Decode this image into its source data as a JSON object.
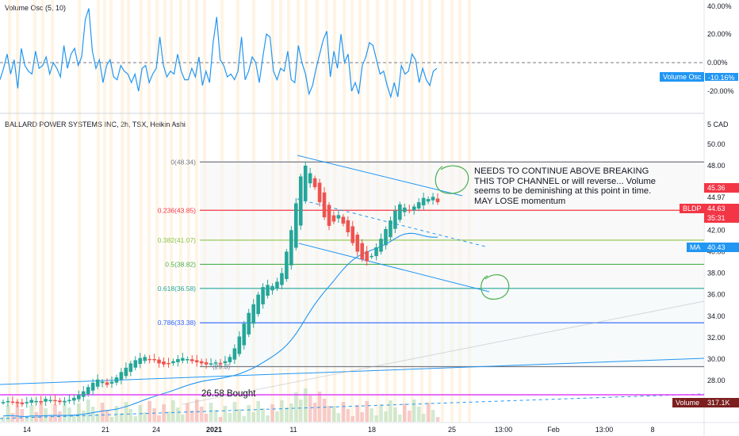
{
  "osc_pane": {
    "title": "Volume Osc (5, 10)",
    "scale_labels": [
      "40.00%",
      "20.00%",
      "0.00%",
      "-20.00%"
    ],
    "badge_label": "Volume Osc",
    "badge_value": "-10.16%",
    "color": "#2196f3"
  },
  "main_pane": {
    "title": "BALLARD POWER SYSTEMS INC, 2h, TSX, Heikin Ashi",
    "currency": "5 CAD",
    "price_labels": [
      "50.00",
      "48.00",
      "44.00",
      "42.00",
      "40.00",
      "38.00",
      "36.00",
      "34.00",
      "32.00",
      "30.00",
      "28.00",
      "26.00"
    ],
    "price_badges": [
      {
        "label": "45.36",
        "color": "#f23645"
      },
      {
        "label": "44.97",
        "color": "#131722"
      },
      {
        "label": "44.63",
        "color": "#f23645"
      },
      {
        "label": "BLDP",
        "color": "#f23645"
      },
      {
        "label": "35:31",
        "color": "#f23645"
      }
    ],
    "ma_badge": {
      "label": "MA",
      "value": "40.43",
      "color": "#2196f3"
    },
    "volume_badge": {
      "label": "Volume",
      "value": "317.1K",
      "color": "#7b1f1f"
    }
  },
  "fib_levels": [
    {
      "label": "0(48.34)",
      "price": 48.34,
      "color": "#787b86"
    },
    {
      "label": "0.236(43.85)",
      "price": 43.85,
      "color": "#f23645"
    },
    {
      "label": "0.382(41.07)",
      "price": 41.07,
      "color": "#8bc34a"
    },
    {
      "label": "0.5(38.82)",
      "price": 38.82,
      "color": "#4caf50"
    },
    {
      "label": "0.618(36.58)",
      "price": 36.58,
      "color": "#26a69a"
    },
    {
      "label": "0.786(33.38)",
      "price": 33.38,
      "color": "#2962ff"
    },
    {
      "label": "(29.3)",
      "price": 29.3,
      "color": "#787b86"
    }
  ],
  "annotations": {
    "note": "NEEDS TO CONTINUE ABOVE BREAKING THIS TOP CHANNEL or will reverse... Volume seems to be deminishing at this point in time. MAY LOSE momentum",
    "bought": "26.58 Bought"
  },
  "time_axis": [
    "14",
    "21",
    "24",
    "2021",
    "11",
    "18",
    "25",
    "13:00",
    "Feb",
    "13:00",
    "8"
  ],
  "colors": {
    "up": "#26a69a",
    "down": "#ef5350",
    "ma": "#2196f3",
    "bought_line": "#e040fb",
    "marker": "#4caf50"
  }
}
